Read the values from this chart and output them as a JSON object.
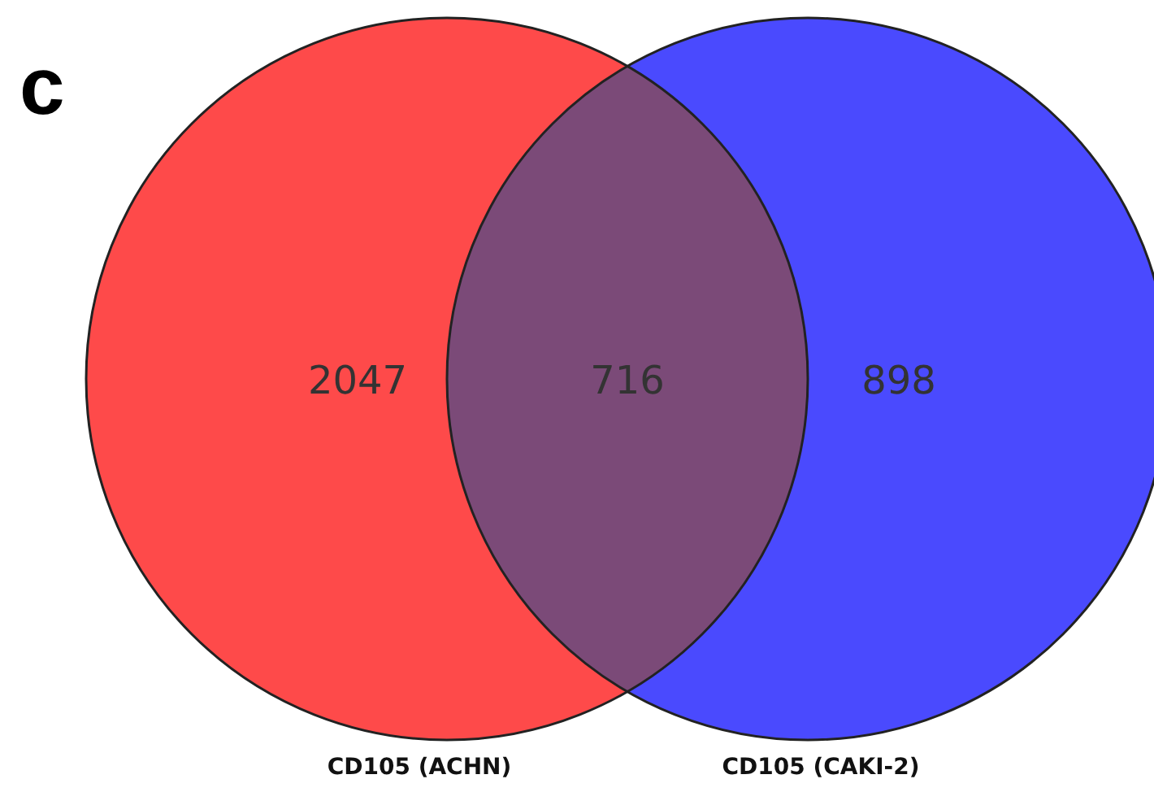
{
  "chart_data": {
    "type": "other",
    "title": "c",
    "categories": [
      null,
      null,
      null
    ],
    "values": [
      2047,
      716,
      898
    ],
    "colors": [
      "#fe4a4a",
      "#7b4a78",
      "#4a4afe"
    ],
    "data_labels": true,
    "annotations": [
      "CD105 (ACHN)",
      "CD105 (CAKI-2)"
    ]
  }
}
